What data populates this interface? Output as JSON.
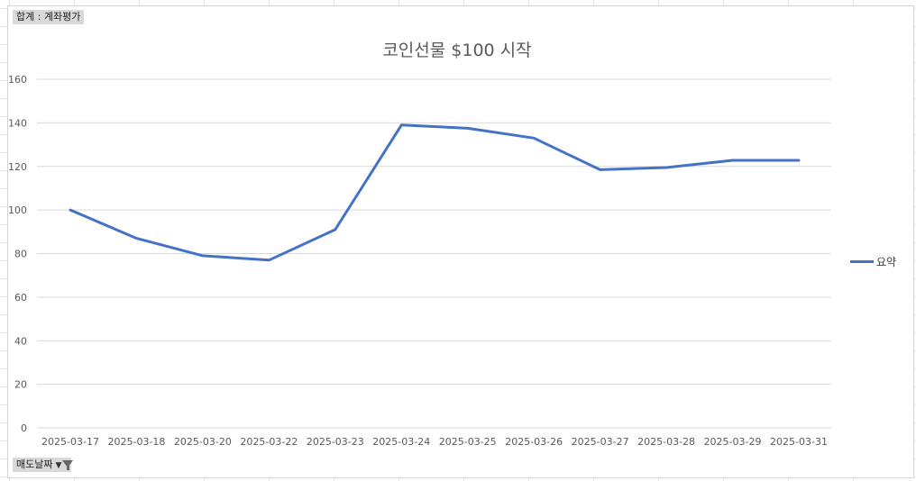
{
  "pivot": {
    "value_field": "합계 : 계좌평가",
    "axis_field": "매도날짜"
  },
  "colors": {
    "series": "#4472c4",
    "grid": "#d9d9d9",
    "text": "#595959"
  },
  "chart_data": {
    "type": "line",
    "title": "코인선물 $100 시작",
    "categories": [
      "2025-03-17",
      "2025-03-18",
      "2025-03-20",
      "2025-03-22",
      "2025-03-23",
      "2025-03-24",
      "2025-03-25",
      "2025-03-26",
      "2025-03-27",
      "2025-03-28",
      "2025-03-29",
      "2025-03-31"
    ],
    "series": [
      {
        "name": "요약",
        "values": [
          100,
          87,
          79,
          77,
          91,
          139,
          137.5,
          133,
          118.5,
          119.5,
          122.8,
          122.8
        ]
      }
    ],
    "ylim": [
      0,
      160
    ],
    "yticks": [
      0,
      20,
      40,
      60,
      80,
      100,
      120,
      140,
      160
    ],
    "grid": true,
    "legend_position": "right"
  }
}
